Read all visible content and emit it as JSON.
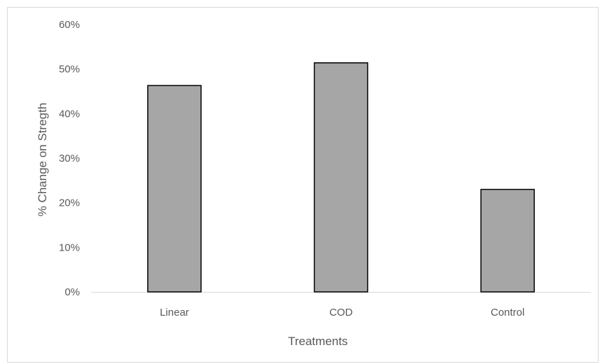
{
  "chart_data": {
    "type": "bar",
    "title": "",
    "xlabel": "Treatments",
    "ylabel": "% Change on Stregth",
    "categories": [
      "Linear",
      "COD",
      "Control"
    ],
    "values": [
      46.3,
      51.4,
      23.0
    ],
    "ylim": [
      0,
      60
    ],
    "yticks": [
      0,
      10,
      20,
      30,
      40,
      50,
      60
    ],
    "ytick_format": "percent",
    "grid": false,
    "legend": "none",
    "colors": {
      "bar_fill": "#a6a6a6",
      "bar_stroke": "#000000",
      "axis": "#d9d9d9",
      "text": "#595959"
    }
  }
}
